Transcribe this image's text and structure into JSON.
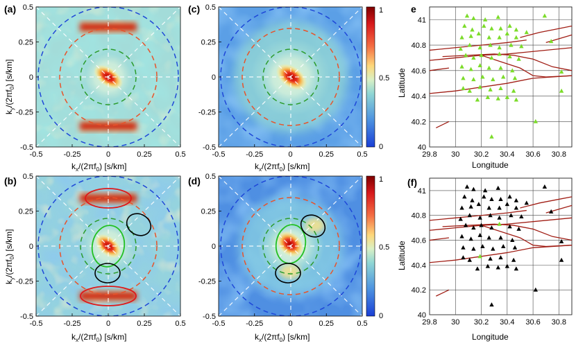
{
  "figure": {
    "panels": [
      {
        "id": "a",
        "label": "(a)",
        "xlabel": "k",
        "xlabel_sub": "x",
        "xlabel_tail": "/(2πf",
        "xlabel_sub2": "0",
        "xlabel_end": ") [s/km]",
        "ylabel": "k",
        "ylabel_sub": "y",
        "ylabel_tail": "/(2πf",
        "ylabel_sub2": "0",
        "ylabel_end": ") [s/km]"
      },
      {
        "id": "c",
        "label": "(c)",
        "xlabel": "k",
        "xlabel_sub": "x",
        "xlabel_tail": "/(2πf",
        "xlabel_sub2": "0",
        "xlabel_end": ") [s/km]"
      },
      {
        "id": "b",
        "label": "(b)",
        "xlabel": "k",
        "xlabel_sub": "x",
        "xlabel_tail": "/(2πf",
        "xlabel_sub2": "0",
        "xlabel_end": ") [s/km]",
        "ylabel": "k",
        "ylabel_sub": "y",
        "ylabel_tail": "/(2πf",
        "ylabel_sub2": "0",
        "ylabel_end": ") [s/km]"
      },
      {
        "id": "d",
        "label": "(d)",
        "xlabel": "k",
        "xlabel_sub": "x",
        "xlabel_tail": "/(2πf",
        "xlabel_sub2": "0",
        "xlabel_end": ") [s/km]"
      },
      {
        "id": "e",
        "label": "e",
        "xlabel": "Longitude",
        "ylabel": "Latitude"
      },
      {
        "id": "f",
        "label": "(f)",
        "xlabel": "Longitude",
        "ylabel": "Latitude"
      }
    ],
    "k_ticks_x": [
      "-0.5",
      "-0.25",
      "0",
      "0.25",
      "0.5"
    ],
    "k_ticks_y": [
      "0.5",
      "0.25",
      "0",
      "-0.25",
      "-0.5"
    ],
    "colorbar_ticks": [
      "1",
      "0.5",
      "0"
    ],
    "lon_ticks": [
      "29.8",
      "30",
      "30.2",
      "30.4",
      "30.6",
      "30.8"
    ],
    "lat_ticks": [
      "41",
      "40.8",
      "40.6",
      "40.4",
      "40.2",
      "40"
    ]
  },
  "chart_data": [
    {
      "type": "heatmap",
      "panel": "a",
      "title": "",
      "xlabel": "kx/(2πf0) [s/km]",
      "ylabel": "ky/(2πf0) [s/km]",
      "xlim": [
        -0.5,
        0.5
      ],
      "ylim": [
        -0.5,
        0.5
      ],
      "peaks": [
        {
          "kx": 0,
          "ky": 0,
          "amp": 1
        },
        {
          "kx": 0,
          "ky": 0.35,
          "amp": 1
        },
        {
          "kx": 0,
          "ky": -0.35,
          "amp": 1
        }
      ],
      "circles_radius": [
        0.2,
        0.35,
        0.5
      ]
    },
    {
      "type": "heatmap",
      "panel": "c",
      "xlabel": "kx/(2πf0) [s/km]",
      "xlim": [
        -0.5,
        0.5
      ],
      "ylim": [
        -0.5,
        0.5
      ],
      "peaks": [
        {
          "kx": 0,
          "ky": 0,
          "amp": 1
        }
      ],
      "colorbar": [
        0,
        0.5,
        1
      ]
    },
    {
      "type": "heatmap",
      "panel": "b",
      "xlabel": "kx/(2πf0) [s/km]",
      "ylabel": "ky/(2πf0) [s/km]",
      "xlim": [
        -0.5,
        0.5
      ],
      "ylim": [
        -0.5,
        0.5
      ],
      "peaks": [
        {
          "kx": 0,
          "ky": 0,
          "amp": 1
        },
        {
          "kx": 0,
          "ky": 0.35,
          "amp": 1
        },
        {
          "kx": 0,
          "ky": -0.35,
          "amp": 1
        }
      ]
    },
    {
      "type": "heatmap",
      "panel": "d",
      "xlabel": "kx/(2πf0) [s/km]",
      "xlim": [
        -0.5,
        0.5
      ],
      "ylim": [
        -0.5,
        0.5
      ],
      "peaks": [
        {
          "kx": 0,
          "ky": 0,
          "amp": 1
        },
        {
          "kx": 0.2,
          "ky": 0.15,
          "amp": 0.6
        },
        {
          "kx": 0,
          "ky": -0.18,
          "amp": 0.6
        }
      ],
      "colorbar": [
        0,
        0.5,
        1
      ]
    },
    {
      "type": "scatter",
      "panel": "e",
      "xlabel": "Longitude",
      "ylabel": "Latitude",
      "xlim": [
        29.8,
        30.9
      ],
      "ylim": [
        40,
        41.1
      ],
      "stations": [
        [
          30.09,
          41.03
        ],
        [
          30.14,
          41.01
        ],
        [
          30.23,
          41.0
        ],
        [
          30.33,
          41.02
        ],
        [
          30.69,
          41.03
        ],
        [
          30.07,
          40.95
        ],
        [
          30.13,
          40.92
        ],
        [
          30.22,
          40.95
        ],
        [
          30.28,
          40.93
        ],
        [
          30.35,
          40.93
        ],
        [
          30.42,
          40.95
        ],
        [
          30.47,
          40.92
        ],
        [
          30.05,
          40.86
        ],
        [
          30.12,
          40.87
        ],
        [
          30.18,
          40.89
        ],
        [
          30.26,
          40.86
        ],
        [
          30.34,
          40.86
        ],
        [
          30.4,
          40.89
        ],
        [
          30.47,
          40.86
        ],
        [
          30.55,
          40.9
        ],
        [
          30.74,
          40.83
        ],
        [
          30.04,
          40.77
        ],
        [
          30.11,
          40.8
        ],
        [
          30.19,
          40.78
        ],
        [
          30.27,
          40.8
        ],
        [
          30.34,
          40.78
        ],
        [
          30.43,
          40.8
        ],
        [
          30.51,
          40.79
        ],
        [
          30.08,
          40.72
        ],
        [
          30.14,
          40.7
        ],
        [
          30.2,
          40.72
        ],
        [
          30.28,
          40.7
        ],
        [
          30.34,
          40.73
        ],
        [
          30.42,
          40.71
        ],
        [
          30.49,
          40.69
        ],
        [
          30.05,
          40.63
        ],
        [
          30.12,
          40.61
        ],
        [
          30.19,
          40.64
        ],
        [
          30.26,
          40.62
        ],
        [
          30.35,
          40.62
        ],
        [
          30.44,
          40.6
        ],
        [
          30.82,
          40.59
        ],
        [
          30.06,
          40.54
        ],
        [
          30.14,
          40.53
        ],
        [
          30.21,
          40.55
        ],
        [
          30.29,
          40.53
        ],
        [
          30.37,
          40.55
        ],
        [
          30.46,
          40.54
        ],
        [
          30.06,
          40.46
        ],
        [
          30.11,
          40.44
        ],
        [
          30.19,
          40.47
        ],
        [
          30.27,
          40.45
        ],
        [
          30.35,
          40.46
        ],
        [
          30.45,
          40.44
        ],
        [
          30.82,
          40.44
        ],
        [
          30.17,
          40.37
        ],
        [
          30.25,
          40.39
        ],
        [
          30.33,
          40.38
        ],
        [
          30.4,
          40.39
        ],
        [
          30.47,
          40.37
        ],
        [
          30.62,
          40.2
        ],
        [
          30.28,
          40.08
        ]
      ]
    },
    {
      "type": "scatter",
      "panel": "f",
      "xlabel": "Longitude",
      "ylabel": "Latitude",
      "xlim": [
        29.8,
        30.9
      ],
      "ylim": [
        40,
        41.1
      ],
      "highlighted": [
        [
          30.12,
          40.86
        ],
        [
          30.34,
          40.73
        ],
        [
          30.19,
          40.47
        ],
        [
          30.28,
          40.37
        ]
      ]
    }
  ]
}
